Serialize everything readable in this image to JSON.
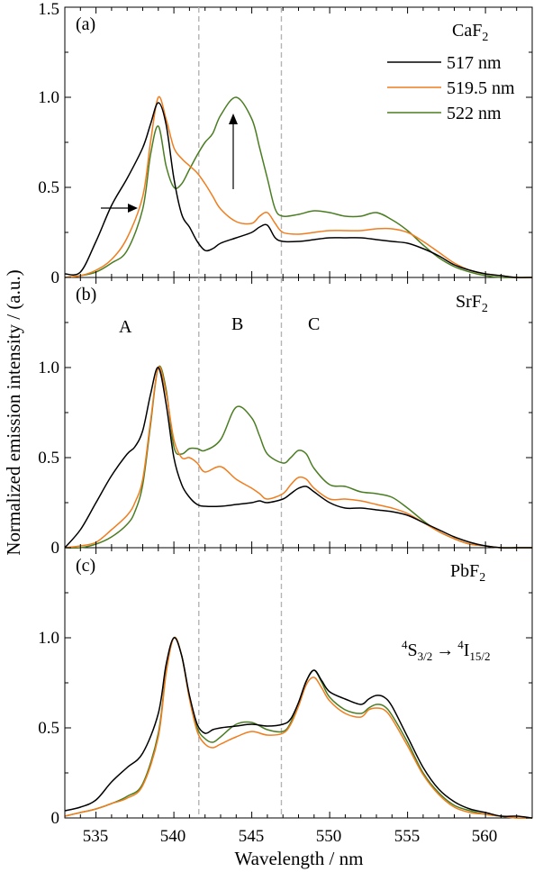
{
  "figure": {
    "ylabel": "Normalized emission intensity / (a.u.)",
    "xlabel": "Wavelength / nm",
    "x_ticks": [
      "535",
      "540",
      "545",
      "550",
      "555",
      "560"
    ],
    "y_ticks_a": [
      "0",
      "0.5",
      "1.0",
      "1.5"
    ],
    "y_ticks_b": [
      "0",
      "0.5",
      "1.0"
    ],
    "y_ticks_c": [
      "0",
      "0.5",
      "1.0"
    ],
    "dashed_lines_nm": [
      541.6,
      546.9
    ],
    "colors": {
      "black": "#000000",
      "orange": "#f07d1e",
      "green": "#4a7d21",
      "dash": "#b4b4b4"
    }
  },
  "legend": [
    {
      "label": "517 nm",
      "color": "#000000"
    },
    {
      "label": "519.5 nm",
      "color": "#f07d1e"
    },
    {
      "label": "522 nm",
      "color": "#4a7d21"
    }
  ],
  "panels": [
    {
      "id": "a",
      "tag": "(a)",
      "host": "CaF",
      "host_sub": "2",
      "region_labels": []
    },
    {
      "id": "b",
      "tag": "(b)",
      "host": "SrF",
      "host_sub": "2",
      "region_labels": [
        "A",
        "B",
        "C"
      ]
    },
    {
      "id": "c",
      "tag": "(c)",
      "host": "PbF",
      "host_sub": "2",
      "region_labels": [],
      "transition": {
        "sup1": "4",
        "s1": "S",
        "sub1": "3/2",
        "arrow": "→",
        "sup2": "4",
        "s2": "I",
        "sub2": "15/2"
      }
    }
  ],
  "chart_data": [
    {
      "type": "line",
      "panel": "a",
      "host": "CaF2",
      "xlim": [
        533,
        563
      ],
      "ylim": [
        0,
        1.5
      ],
      "series": [
        {
          "name": "517 nm",
          "color": "#000000",
          "x": [
            533,
            534,
            535,
            536,
            537,
            538,
            538.5,
            539,
            539.5,
            540,
            540.5,
            541,
            541.5,
            542,
            542.5,
            543,
            544,
            545,
            545.5,
            546,
            546.5,
            547,
            548,
            549,
            550,
            551,
            552,
            553,
            554,
            555,
            556,
            557,
            558,
            559,
            560,
            561,
            562,
            563
          ],
          "y": [
            0.02,
            0.03,
            0.2,
            0.4,
            0.55,
            0.72,
            0.85,
            0.97,
            0.85,
            0.55,
            0.35,
            0.28,
            0.2,
            0.15,
            0.16,
            0.19,
            0.22,
            0.25,
            0.28,
            0.29,
            0.22,
            0.2,
            0.2,
            0.21,
            0.22,
            0.22,
            0.22,
            0.21,
            0.2,
            0.19,
            0.16,
            0.12,
            0.07,
            0.04,
            0.02,
            0.01,
            0.0,
            0.0
          ]
        },
        {
          "name": "519.5 nm",
          "color": "#f07d1e",
          "x": [
            533,
            534,
            535,
            536,
            537,
            538,
            538.5,
            539,
            539.5,
            540,
            540.5,
            541,
            541.5,
            542,
            542.5,
            543,
            544,
            545,
            545.5,
            546,
            546.5,
            547,
            548,
            549,
            550,
            551,
            552,
            553,
            554,
            555,
            556,
            557,
            558,
            559,
            560,
            561,
            562,
            563
          ],
          "y": [
            0.0,
            0.01,
            0.04,
            0.1,
            0.22,
            0.45,
            0.75,
            1.0,
            0.88,
            0.72,
            0.66,
            0.62,
            0.58,
            0.52,
            0.45,
            0.38,
            0.31,
            0.3,
            0.34,
            0.36,
            0.3,
            0.25,
            0.24,
            0.25,
            0.26,
            0.26,
            0.26,
            0.27,
            0.27,
            0.25,
            0.2,
            0.14,
            0.08,
            0.04,
            0.02,
            0.01,
            0.0,
            0.0
          ]
        },
        {
          "name": "522 nm",
          "color": "#4a7d21",
          "x": [
            533,
            534,
            535,
            536,
            537,
            538,
            538.5,
            539,
            539.5,
            540,
            540.5,
            541,
            541.5,
            542,
            542.5,
            543,
            544,
            545,
            545.5,
            546,
            546.5,
            547,
            548,
            549,
            550,
            551,
            552,
            553,
            554,
            555,
            556,
            557,
            558,
            559,
            560,
            561,
            562,
            563
          ],
          "y": [
            0.0,
            0.01,
            0.03,
            0.08,
            0.15,
            0.38,
            0.68,
            0.84,
            0.62,
            0.5,
            0.52,
            0.6,
            0.68,
            0.75,
            0.8,
            0.9,
            1.0,
            0.88,
            0.72,
            0.55,
            0.38,
            0.34,
            0.35,
            0.37,
            0.36,
            0.34,
            0.34,
            0.36,
            0.32,
            0.26,
            0.18,
            0.11,
            0.06,
            0.03,
            0.01,
            0.0,
            0.0,
            0.0
          ]
        }
      ]
    },
    {
      "type": "line",
      "panel": "b",
      "host": "SrF2",
      "xlim": [
        533,
        563
      ],
      "ylim": [
        0,
        1.5
      ],
      "series": [
        {
          "name": "517 nm",
          "color": "#000000",
          "x": [
            533,
            534,
            535,
            536,
            537,
            537.5,
            538,
            538.5,
            539,
            539.5,
            540,
            540.5,
            541,
            541.5,
            542,
            543,
            544,
            545,
            545.5,
            546,
            547,
            547.5,
            548,
            548.5,
            549,
            550,
            551,
            552,
            553,
            554,
            555,
            556,
            557,
            558,
            559,
            560,
            561,
            562,
            563
          ],
          "y": [
            0.0,
            0.1,
            0.25,
            0.4,
            0.52,
            0.56,
            0.65,
            0.85,
            1.0,
            0.8,
            0.5,
            0.35,
            0.28,
            0.24,
            0.23,
            0.23,
            0.24,
            0.25,
            0.26,
            0.25,
            0.27,
            0.3,
            0.33,
            0.34,
            0.31,
            0.25,
            0.22,
            0.22,
            0.21,
            0.2,
            0.18,
            0.14,
            0.1,
            0.06,
            0.03,
            0.01,
            0.0,
            0.0,
            0.0
          ]
        },
        {
          "name": "519.5 nm",
          "color": "#f07d1e",
          "x": [
            533,
            534,
            535,
            536,
            537,
            537.5,
            538,
            538.5,
            539,
            539.5,
            540,
            540.5,
            541,
            541.5,
            542,
            543,
            544,
            545,
            545.5,
            546,
            547,
            547.5,
            548,
            548.5,
            549,
            550,
            551,
            552,
            553,
            554,
            555,
            556,
            557,
            558,
            559,
            560,
            561,
            562,
            563
          ],
          "y": [
            0.0,
            0.01,
            0.03,
            0.1,
            0.18,
            0.25,
            0.38,
            0.7,
            1.0,
            0.86,
            0.6,
            0.5,
            0.5,
            0.47,
            0.42,
            0.45,
            0.38,
            0.33,
            0.3,
            0.27,
            0.3,
            0.35,
            0.39,
            0.38,
            0.33,
            0.27,
            0.27,
            0.26,
            0.24,
            0.22,
            0.19,
            0.14,
            0.09,
            0.05,
            0.02,
            0.01,
            0.0,
            0.0,
            0.0
          ]
        },
        {
          "name": "522 nm",
          "color": "#4a7d21",
          "x": [
            533,
            534,
            535,
            536,
            537,
            537.5,
            538,
            538.5,
            539,
            539.5,
            540,
            540.5,
            541,
            541.5,
            542,
            543,
            544,
            545,
            545.5,
            546,
            547,
            547.5,
            548,
            548.5,
            549,
            550,
            551,
            552,
            553,
            554,
            555,
            556,
            557,
            558,
            559,
            560,
            561,
            562,
            563
          ],
          "y": [
            0.0,
            0.0,
            0.02,
            0.06,
            0.13,
            0.2,
            0.35,
            0.68,
            1.0,
            0.88,
            0.56,
            0.52,
            0.55,
            0.55,
            0.54,
            0.6,
            0.78,
            0.72,
            0.62,
            0.52,
            0.47,
            0.5,
            0.54,
            0.52,
            0.44,
            0.35,
            0.34,
            0.31,
            0.3,
            0.28,
            0.22,
            0.15,
            0.09,
            0.05,
            0.02,
            0.01,
            0.0,
            0.0,
            0.0
          ]
        }
      ]
    },
    {
      "type": "line",
      "panel": "c",
      "host": "PbF2",
      "xlim": [
        533,
        563
      ],
      "ylim": [
        0,
        1.5
      ],
      "series": [
        {
          "name": "517 nm",
          "color": "#000000",
          "x": [
            533,
            534,
            535,
            536,
            537,
            538,
            539,
            539.5,
            540,
            540.5,
            541,
            541.5,
            542,
            542.5,
            543,
            544,
            545,
            546,
            547,
            547.5,
            548,
            548.5,
            549,
            549.5,
            550,
            551,
            552,
            552.5,
            553,
            553.5,
            554,
            555,
            556,
            557,
            558,
            559,
            560,
            561,
            562,
            563
          ],
          "y": [
            0.04,
            0.06,
            0.1,
            0.2,
            0.28,
            0.36,
            0.58,
            0.85,
            1.0,
            0.9,
            0.68,
            0.52,
            0.47,
            0.49,
            0.5,
            0.51,
            0.52,
            0.51,
            0.52,
            0.55,
            0.64,
            0.76,
            0.82,
            0.76,
            0.7,
            0.66,
            0.63,
            0.66,
            0.68,
            0.67,
            0.62,
            0.45,
            0.28,
            0.16,
            0.09,
            0.05,
            0.03,
            0.01,
            0.01,
            0.0
          ]
        },
        {
          "name": "519.5 nm",
          "color": "#f07d1e",
          "x": [
            533,
            534,
            535,
            536,
            537,
            538,
            539,
            539.5,
            540,
            540.5,
            541,
            541.5,
            542,
            542.5,
            543,
            544,
            545,
            546,
            547,
            547.5,
            548,
            548.5,
            549,
            549.5,
            550,
            551,
            552,
            552.5,
            553,
            553.5,
            554,
            555,
            556,
            557,
            558,
            559,
            560,
            561,
            562,
            563
          ],
          "y": [
            0.01,
            0.03,
            0.05,
            0.08,
            0.11,
            0.18,
            0.45,
            0.8,
            1.0,
            0.9,
            0.66,
            0.48,
            0.41,
            0.39,
            0.41,
            0.45,
            0.48,
            0.46,
            0.47,
            0.52,
            0.62,
            0.74,
            0.78,
            0.72,
            0.65,
            0.58,
            0.56,
            0.6,
            0.61,
            0.6,
            0.55,
            0.4,
            0.24,
            0.13,
            0.06,
            0.03,
            0.02,
            0.01,
            0.0,
            0.0
          ]
        },
        {
          "name": "522 nm",
          "color": "#4a7d21",
          "x": [
            533,
            534,
            535,
            536,
            537,
            538,
            539,
            539.5,
            540,
            540.5,
            541,
            541.5,
            542,
            542.5,
            543,
            544,
            545,
            546,
            547,
            547.5,
            548,
            548.5,
            549,
            549.5,
            550,
            551,
            552,
            552.5,
            553,
            553.5,
            554,
            555,
            556,
            557,
            558,
            559,
            560,
            561,
            562,
            563
          ],
          "y": [
            0.01,
            0.03,
            0.05,
            0.08,
            0.12,
            0.19,
            0.47,
            0.81,
            1.0,
            0.9,
            0.67,
            0.5,
            0.44,
            0.42,
            0.45,
            0.52,
            0.53,
            0.49,
            0.48,
            0.53,
            0.64,
            0.76,
            0.82,
            0.75,
            0.67,
            0.6,
            0.58,
            0.61,
            0.63,
            0.62,
            0.57,
            0.42,
            0.25,
            0.14,
            0.07,
            0.04,
            0.02,
            0.01,
            0.0,
            0.0
          ]
        }
      ]
    }
  ]
}
